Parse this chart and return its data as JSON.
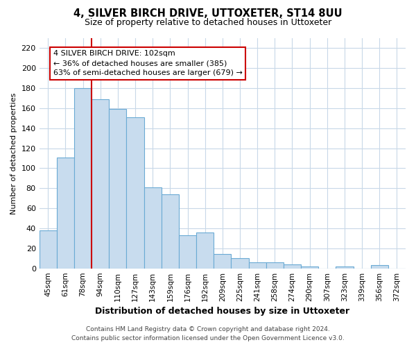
{
  "title": "4, SILVER BIRCH DRIVE, UTTOXETER, ST14 8UU",
  "subtitle": "Size of property relative to detached houses in Uttoxeter",
  "xlabel": "Distribution of detached houses by size in Uttoxeter",
  "ylabel": "Number of detached properties",
  "categories": [
    "45sqm",
    "61sqm",
    "78sqm",
    "94sqm",
    "110sqm",
    "127sqm",
    "143sqm",
    "159sqm",
    "176sqm",
    "192sqm",
    "209sqm",
    "225sqm",
    "241sqm",
    "258sqm",
    "274sqm",
    "290sqm",
    "307sqm",
    "323sqm",
    "339sqm",
    "356sqm",
    "372sqm"
  ],
  "values": [
    38,
    111,
    180,
    169,
    159,
    151,
    81,
    74,
    33,
    36,
    14,
    10,
    6,
    6,
    4,
    2,
    0,
    2,
    0,
    3,
    0
  ],
  "bar_color": "#c8dcee",
  "bar_edge_color": "#6aaad4",
  "vline_bar_index": 3,
  "vline_color": "#cc0000",
  "ylim": [
    0,
    230
  ],
  "yticks": [
    0,
    20,
    40,
    60,
    80,
    100,
    120,
    140,
    160,
    180,
    200,
    220
  ],
  "annotation_title": "4 SILVER BIRCH DRIVE: 102sqm",
  "annotation_line1": "← 36% of detached houses are smaller (385)",
  "annotation_line2": "63% of semi-detached houses are larger (679) →",
  "annotation_box_color": "#ffffff",
  "annotation_box_edge_color": "#cc0000",
  "footer_line1": "Contains HM Land Registry data © Crown copyright and database right 2024.",
  "footer_line2": "Contains public sector information licensed under the Open Government Licence v3.0.",
  "background_color": "#ffffff",
  "grid_color": "#c8d8e8",
  "title_fontsize": 10.5,
  "subtitle_fontsize": 9,
  "ylabel_fontsize": 8,
  "xlabel_fontsize": 9,
  "tick_fontsize": 7.5,
  "ytick_fontsize": 8,
  "ann_fontsize": 8,
  "footer_fontsize": 6.5
}
